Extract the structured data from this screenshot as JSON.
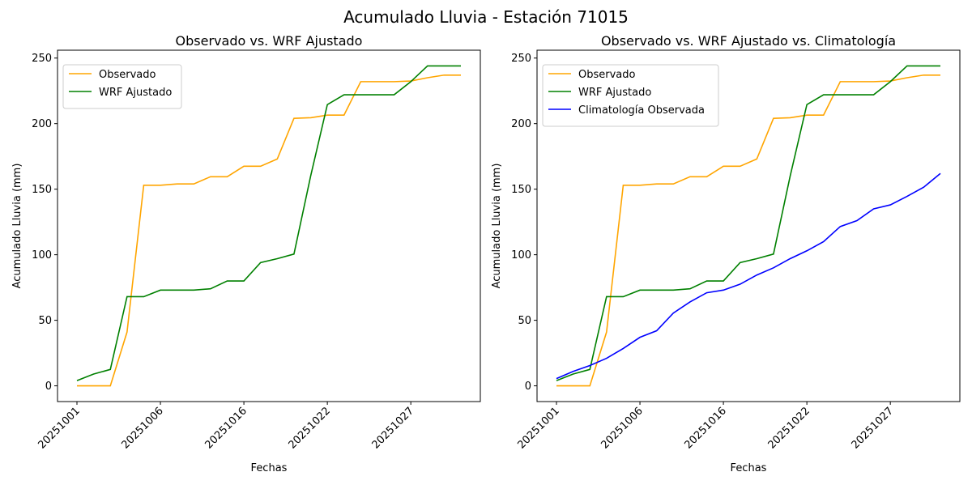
{
  "suptitle": "Acumulado Lluvia - Estación 71015",
  "chart_data": [
    {
      "type": "line",
      "title": "Observado vs. WRF Ajustado",
      "xlabel": "Fechas",
      "ylabel": "Acumulado Lluvia (mm)",
      "ylim": [
        -12,
        256
      ],
      "yticks": [
        0,
        50,
        100,
        150,
        200,
        250
      ],
      "xticks": [
        {
          "index": 0,
          "label": "20251001"
        },
        {
          "index": 5,
          "label": "20251006"
        },
        {
          "index": 10,
          "label": "20251016"
        },
        {
          "index": 15,
          "label": "20251022"
        },
        {
          "index": 20,
          "label": "20251027"
        }
      ],
      "legend": "upper-left",
      "series": [
        {
          "name": "Observado",
          "color": "#ffa500",
          "values": [
            0,
            0,
            0,
            41,
            153,
            153,
            154,
            154,
            159.5,
            159.5,
            167.5,
            167.5,
            173,
            204,
            204.5,
            206.5,
            206.5,
            232,
            232,
            232,
            232.5,
            235,
            237,
            237
          ]
        },
        {
          "name": "WRF Ajustado",
          "color": "#008000",
          "values": [
            4,
            9,
            12.5,
            68,
            68,
            73,
            73,
            73,
            74,
            80,
            80,
            94,
            97,
            100.5,
            160,
            214.5,
            222,
            222,
            222,
            222,
            232,
            244,
            244,
            244
          ]
        }
      ]
    },
    {
      "type": "line",
      "title": "Observado vs. WRF Ajustado vs. Climatología",
      "xlabel": "Fechas",
      "ylabel": "Acumulado Lluvia (mm)",
      "ylim": [
        -12,
        256
      ],
      "yticks": [
        0,
        50,
        100,
        150,
        200,
        250
      ],
      "xticks": [
        {
          "index": 0,
          "label": "20251001"
        },
        {
          "index": 5,
          "label": "20251006"
        },
        {
          "index": 10,
          "label": "20251016"
        },
        {
          "index": 15,
          "label": "20251022"
        },
        {
          "index": 20,
          "label": "20251027"
        }
      ],
      "legend": "upper-left",
      "series": [
        {
          "name": "Observado",
          "color": "#ffa500",
          "values": [
            0,
            0,
            0,
            41,
            153,
            153,
            154,
            154,
            159.5,
            159.5,
            167.5,
            167.5,
            173,
            204,
            204.5,
            206.5,
            206.5,
            232,
            232,
            232,
            232.5,
            235,
            237,
            237
          ]
        },
        {
          "name": "WRF Ajustado",
          "color": "#008000",
          "values": [
            4,
            9,
            12.5,
            68,
            68,
            73,
            73,
            73,
            74,
            80,
            80,
            94,
            97,
            100.5,
            160,
            214.5,
            222,
            222,
            222,
            222,
            232,
            244,
            244,
            244
          ]
        },
        {
          "name": "Climatología Observada",
          "color": "#0000ff",
          "values": [
            5.5,
            11,
            15.5,
            21,
            28.5,
            37,
            42,
            55.5,
            64,
            71,
            73,
            77.5,
            84.5,
            90,
            97,
            103,
            110,
            121.5,
            126,
            135,
            138,
            144.5,
            151.5,
            162
          ]
        }
      ]
    }
  ]
}
